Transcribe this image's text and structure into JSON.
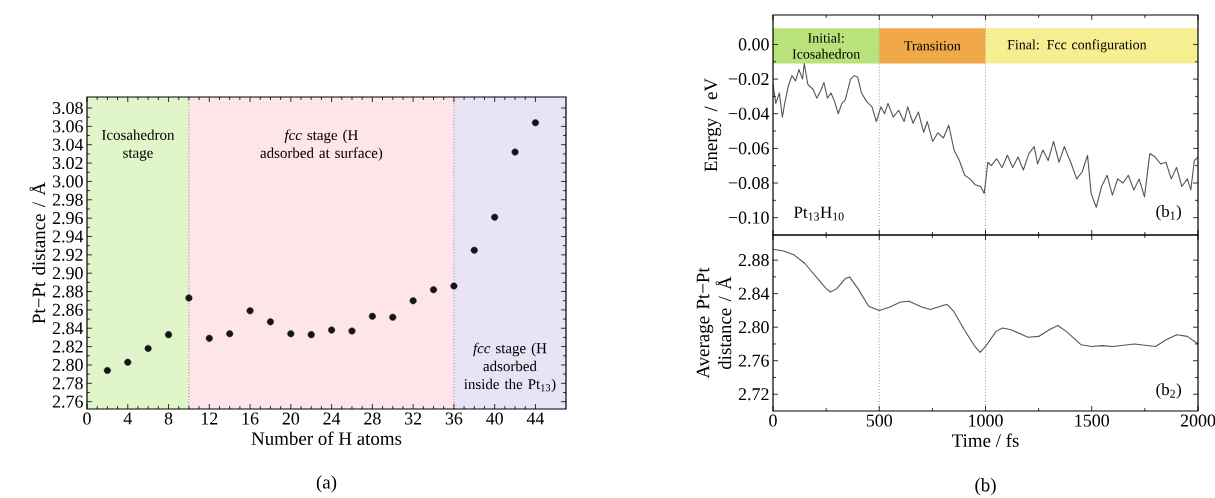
{
  "chart_data": [
    {
      "type": "scatter",
      "xlabel": "Number of H atoms",
      "ylabel": "Pt−Pt distance / Å",
      "marker": "circle",
      "color": "#151515",
      "grid": false,
      "x": [
        2,
        4,
        6,
        8,
        10,
        12,
        14,
        16,
        18,
        20,
        22,
        24,
        26,
        28,
        30,
        32,
        34,
        36,
        38,
        40,
        42,
        44
      ],
      "values": [
        2.794,
        2.803,
        2.818,
        2.833,
        2.873,
        2.829,
        2.834,
        2.859,
        2.847,
        2.834,
        2.833,
        2.838,
        2.837,
        2.853,
        2.852,
        2.87,
        2.882,
        2.886,
        2.925,
        2.961,
        3.032,
        3.064
      ],
      "xlim": [
        0,
        47
      ],
      "xticks": [
        0,
        4,
        8,
        12,
        16,
        20,
        24,
        28,
        32,
        36,
        40,
        44
      ],
      "ylim": [
        2.752,
        3.092
      ],
      "yticks": [
        {
          "value": 2.76,
          "label": "2.76"
        },
        {
          "value": 2.78,
          "label": "2.78"
        },
        {
          "value": 2.8,
          "label": "2.80"
        },
        {
          "value": 2.82,
          "label": "2.82"
        },
        {
          "value": 2.84,
          "label": "2.84"
        },
        {
          "value": 2.86,
          "label": "2.86"
        },
        {
          "value": 2.88,
          "label": "2.88"
        },
        {
          "value": 2.9,
          "label": "2.90"
        },
        {
          "value": 2.92,
          "label": "2.92"
        },
        {
          "value": 2.94,
          "label": "2.94"
        },
        {
          "value": 2.96,
          "label": "2.96"
        },
        {
          "value": 2.98,
          "label": "2.98"
        },
        {
          "value": 3.0,
          "label": "3.00"
        },
        {
          "value": 3.02,
          "label": "3.02"
        },
        {
          "value": 3.04,
          "label": "3.04"
        },
        {
          "value": 3.06,
          "label": "3.06"
        },
        {
          "value": 3.08,
          "label": "3.08"
        }
      ],
      "bands": [
        {
          "axis": "x",
          "from": 0,
          "to": 10,
          "label": "Icosahedron stage",
          "color": "#e0f5c9"
        },
        {
          "axis": "x",
          "from": 10,
          "to": 36,
          "label": "*fcc* stage (H adsorbed at surface)",
          "color": "#fde5e9"
        },
        {
          "axis": "x",
          "from": 36,
          "to": 47,
          "label": "*fcc* stage (H adsorbed inside the Pt$_{13}$)",
          "color": "#e8e4f6"
        }
      ],
      "ref_lines": [
        {
          "axis": "x",
          "value": 10,
          "color": "#8a8a8a",
          "line_style": "dotted"
        },
        {
          "axis": "x",
          "value": 36,
          "color": "#8a8a8a",
          "line_style": "dotted"
        }
      ],
      "annotations": [
        "(a)"
      ]
    },
    {
      "type": "line",
      "ylabel": "Energy / eV",
      "color": "#555555",
      "marker": "none",
      "line_style": "solid",
      "grid": false,
      "tick_labels": "y",
      "x": [
        0,
        13,
        30,
        44,
        55,
        72,
        89,
        106,
        122,
        139,
        147,
        164,
        189,
        206,
        223,
        240,
        256,
        273,
        290,
        307,
        324,
        340,
        365,
        382,
        399,
        416,
        441,
        466,
        486,
        508,
        525,
        541,
        566,
        591,
        617,
        634,
        659,
        684,
        709,
        726,
        751,
        776,
        802,
        827,
        852,
        877,
        902,
        927,
        952,
        977,
        994,
        1011,
        1027,
        1052,
        1078,
        1103,
        1128,
        1153,
        1178,
        1204,
        1229,
        1245,
        1270,
        1295,
        1320,
        1346,
        1371,
        1404,
        1429,
        1455,
        1480,
        1497,
        1521,
        1546,
        1572,
        1597,
        1622,
        1647,
        1672,
        1698,
        1723,
        1748,
        1773,
        1798,
        1824,
        1849,
        1874,
        1899,
        1924,
        1950,
        1966,
        1983,
        2000
      ],
      "values": [
        -0.023,
        -0.034,
        -0.028,
        -0.042,
        -0.034,
        -0.024,
        -0.018,
        -0.021,
        -0.0145,
        -0.02,
        -0.011,
        -0.023,
        -0.026,
        -0.031,
        -0.027,
        -0.022,
        -0.031,
        -0.028,
        -0.033,
        -0.04,
        -0.034,
        -0.032,
        -0.02,
        -0.018,
        -0.019,
        -0.028,
        -0.033,
        -0.036,
        -0.0445,
        -0.036,
        -0.04,
        -0.034,
        -0.042,
        -0.038,
        -0.0445,
        -0.036,
        -0.0455,
        -0.039,
        -0.0507,
        -0.0445,
        -0.056,
        -0.051,
        -0.054,
        -0.0466,
        -0.061,
        -0.067,
        -0.0755,
        -0.0776,
        -0.081,
        -0.082,
        -0.086,
        -0.068,
        -0.07,
        -0.066,
        -0.071,
        -0.064,
        -0.071,
        -0.065,
        -0.0725,
        -0.063,
        -0.059,
        -0.069,
        -0.061,
        -0.067,
        -0.056,
        -0.068,
        -0.059,
        -0.069,
        -0.0776,
        -0.0735,
        -0.064,
        -0.086,
        -0.094,
        -0.082,
        -0.0755,
        -0.087,
        -0.0776,
        -0.08,
        -0.0755,
        -0.084,
        -0.0776,
        -0.088,
        -0.063,
        -0.065,
        -0.069,
        -0.068,
        -0.0776,
        -0.071,
        -0.082,
        -0.0776,
        -0.084,
        -0.067,
        -0.065
      ],
      "xlim": [
        0,
        2000
      ],
      "xticks": [
        0,
        500,
        1000,
        1500,
        2000
      ],
      "ylim": [
        -0.11,
        0.017
      ],
      "yticks": [
        {
          "value": -0.1,
          "label": "−0.10"
        },
        {
          "value": -0.08,
          "label": "−0.08"
        },
        {
          "value": -0.06,
          "label": "−0.06"
        },
        {
          "value": -0.04,
          "label": "−0.04"
        },
        {
          "value": -0.02,
          "label": "−0.02"
        },
        {
          "value": 0,
          "label": "0.00"
        }
      ],
      "bands": [
        {
          "axis": "x",
          "from": 0,
          "to": 500,
          "label": "Initial: Icosahedron",
          "color": "#b9e27a"
        },
        {
          "axis": "x",
          "from": 500,
          "to": 1000,
          "label": "Transition",
          "color": "#f0a848"
        },
        {
          "axis": "x",
          "from": 1000,
          "to": 2000,
          "label": "Final: Fcc configuration",
          "color": "#f6ef91"
        }
      ],
      "ref_lines": [
        {
          "axis": "x",
          "value": 500,
          "color": "#9a9a9a",
          "line_style": "dotted"
        },
        {
          "axis": "x",
          "value": 1000,
          "color": "#9a9a9a",
          "line_style": "dotted"
        }
      ],
      "annotations": [
        "Pt$_{13}$H$_{10}$",
        "(b$_{1}$)"
      ]
    },
    {
      "type": "line",
      "xlabel": "Time / fs",
      "ylabel": "Average Pt−Pt distance / Å",
      "color": "#555555",
      "marker": "none",
      "line_style": "solid",
      "grid": false,
      "x": [
        0,
        50,
        100,
        150,
        200,
        250,
        270,
        300,
        340,
        360,
        400,
        450,
        500,
        550,
        600,
        640,
        700,
        740,
        800,
        820,
        850,
        900,
        950,
        975,
        1000,
        1050,
        1080,
        1120,
        1200,
        1250,
        1300,
        1340,
        1380,
        1450,
        1500,
        1550,
        1600,
        1700,
        1800,
        1850,
        1900,
        1950,
        2000
      ],
      "values": [
        2.893,
        2.891,
        2.886,
        2.876,
        2.861,
        2.846,
        2.842,
        2.846,
        2.858,
        2.86,
        2.846,
        2.825,
        2.82,
        2.824,
        2.83,
        2.831,
        2.824,
        2.821,
        2.826,
        2.827,
        2.819,
        2.797,
        2.777,
        2.77,
        2.777,
        2.795,
        2.799,
        2.797,
        2.788,
        2.789,
        2.797,
        2.802,
        2.795,
        2.779,
        2.777,
        2.778,
        2.777,
        2.78,
        2.777,
        2.785,
        2.791,
        2.789,
        2.78
      ],
      "xlim": [
        0,
        2000
      ],
      "xticks": [
        0,
        500,
        1000,
        1500,
        2000
      ],
      "ylim": [
        2.7,
        2.91
      ],
      "yticks": [
        {
          "value": 2.72,
          "label": "2.72"
        },
        {
          "value": 2.76,
          "label": "2.76"
        },
        {
          "value": 2.8,
          "label": "2.80"
        },
        {
          "value": 2.84,
          "label": "2.84"
        },
        {
          "value": 2.88,
          "label": "2.88"
        }
      ],
      "ref_lines": [
        {
          "axis": "x",
          "value": 500,
          "color": "#9a9a9a",
          "line_style": "dotted"
        },
        {
          "axis": "x",
          "value": 1000,
          "color": "#9a9a9a",
          "line_style": "dotted"
        }
      ],
      "annotations": [
        "(b$_{2}$)",
        "(b)"
      ]
    }
  ]
}
